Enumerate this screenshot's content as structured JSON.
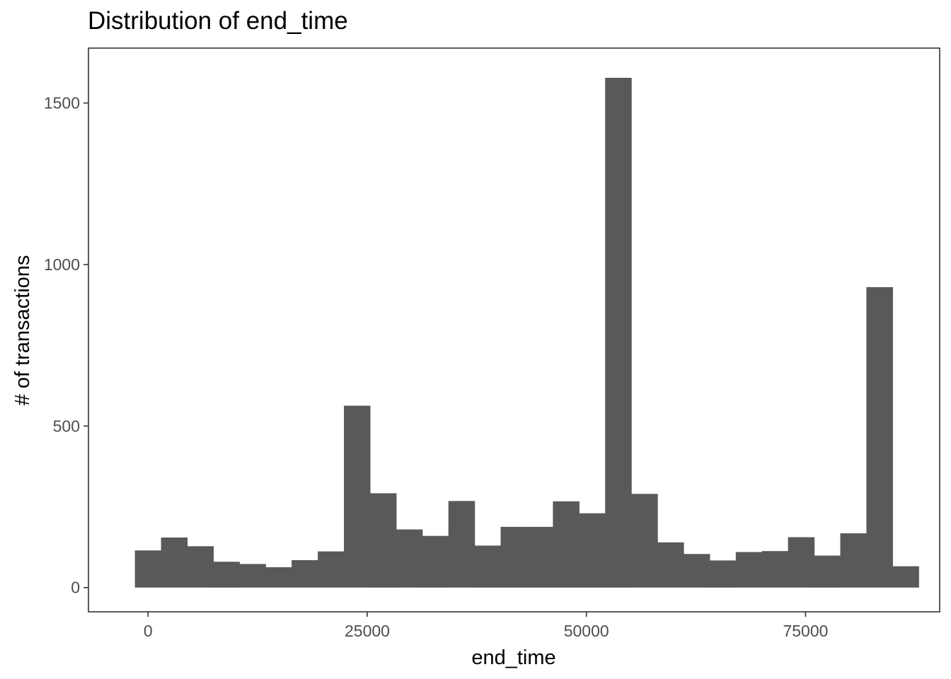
{
  "chart_data": {
    "type": "bar",
    "title": "Distribution of end_time",
    "xlabel": "end_time",
    "ylabel": "# of transactions",
    "xlim": [
      -6800,
      90300
    ],
    "ylim": [
      -75,
      1670
    ],
    "x_ticks": [
      0,
      25000,
      50000,
      75000
    ],
    "x_tick_labels": [
      "0",
      "25000",
      "50000",
      "75000"
    ],
    "y_ticks": [
      0,
      500,
      1000,
      1500
    ],
    "y_tick_labels": [
      "0",
      "500",
      "1000",
      "1500"
    ],
    "grid": false,
    "bar_color": "#595959",
    "bins": [
      {
        "x0": -1500,
        "x1": 1480,
        "count": 115
      },
      {
        "x0": 1480,
        "x1": 4460,
        "count": 155
      },
      {
        "x0": 4460,
        "x1": 7440,
        "count": 128
      },
      {
        "x0": 7440,
        "x1": 10420,
        "count": 80
      },
      {
        "x0": 10420,
        "x1": 13400,
        "count": 73
      },
      {
        "x0": 13400,
        "x1": 16380,
        "count": 63
      },
      {
        "x0": 16380,
        "x1": 19360,
        "count": 85
      },
      {
        "x0": 19360,
        "x1": 22340,
        "count": 112
      },
      {
        "x0": 22340,
        "x1": 25320,
        "count": 563
      },
      {
        "x0": 25320,
        "x1": 28300,
        "count": 292
      },
      {
        "x0": 28300,
        "x1": 31280,
        "count": 180
      },
      {
        "x0": 31280,
        "x1": 34260,
        "count": 160
      },
      {
        "x0": 34260,
        "x1": 37240,
        "count": 268
      },
      {
        "x0": 37240,
        "x1": 40220,
        "count": 130
      },
      {
        "x0": 40220,
        "x1": 43200,
        "count": 188
      },
      {
        "x0": 43200,
        "x1": 46180,
        "count": 188
      },
      {
        "x0": 46180,
        "x1": 49160,
        "count": 267
      },
      {
        "x0": 49160,
        "x1": 52140,
        "count": 230
      },
      {
        "x0": 52140,
        "x1": 55120,
        "count": 1578
      },
      {
        "x0": 55120,
        "x1": 58100,
        "count": 290
      },
      {
        "x0": 58100,
        "x1": 61080,
        "count": 140
      },
      {
        "x0": 61080,
        "x1": 64060,
        "count": 104
      },
      {
        "x0": 64060,
        "x1": 67040,
        "count": 84
      },
      {
        "x0": 67040,
        "x1": 70020,
        "count": 110
      },
      {
        "x0": 70020,
        "x1": 73000,
        "count": 113
      },
      {
        "x0": 73000,
        "x1": 75980,
        "count": 156
      },
      {
        "x0": 75980,
        "x1": 78960,
        "count": 99
      },
      {
        "x0": 78960,
        "x1": 81940,
        "count": 168
      },
      {
        "x0": 81940,
        "x1": 84920,
        "count": 930
      },
      {
        "x0": 84920,
        "x1": 87900,
        "count": 66
      }
    ]
  }
}
